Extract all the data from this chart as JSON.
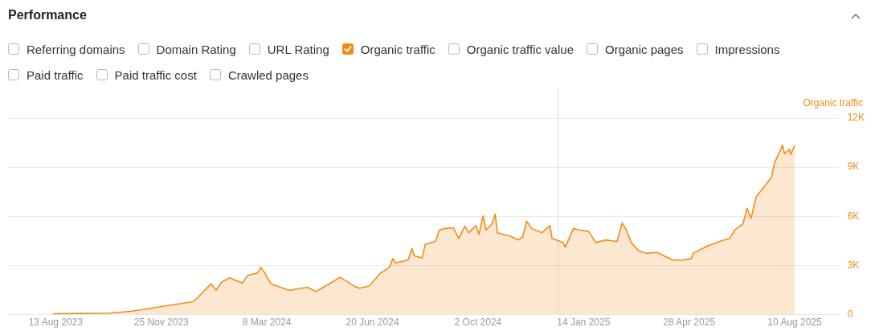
{
  "chart_data": {
    "type": "area",
    "title": "Performance",
    "ylabel": "Organic traffic",
    "annotations": [
      "Referring domains",
      "Domain Rating",
      "URL Rating",
      "Organic traffic value",
      "Organic pages",
      "Impressions",
      "Paid traffic",
      "Paid traffic cost",
      "Crawled pages"
    ],
    "legend": "top left",
    "grid": "y",
    "xlim": [
      "2023-06-27",
      "2025-09-23"
    ],
    "xticks": [
      {
        "value": "2023-08-13",
        "label": "13 Aug 2023"
      },
      {
        "value": "2023-11-25",
        "label": "25 Nov 2023"
      },
      {
        "value": "2024-03-08",
        "label": "8 Mar 2024"
      },
      {
        "value": "2024-06-20",
        "label": "20 Jun 2024"
      },
      {
        "value": "2024-10-02",
        "label": "2 Oct 2024"
      },
      {
        "value": "2025-01-14",
        "label": "14 Jan 2025"
      },
      {
        "value": "2025-04-28",
        "label": "28 Apr 2025"
      },
      {
        "value": "2025-08-10",
        "label": "10 Aug 2025"
      }
    ],
    "ylim": [
      0,
      12000
    ],
    "yticks": [
      {
        "value": 0,
        "label": "0"
      },
      {
        "value": 3000,
        "label": "3K"
      },
      {
        "value": 6000,
        "label": "6K"
      },
      {
        "value": 9000,
        "label": "9K"
      },
      {
        "value": 12000,
        "label": "12K"
      }
    ],
    "ref_lines": [
      {
        "axis": "x",
        "value": "2024-12-20",
        "color": "#e3e3e3"
      }
    ],
    "series": [
      {
        "name": "Organic traffic",
        "color": "#f28c18",
        "x": [
          "2023-08-10",
          "2023-10-05",
          "2023-10-26",
          "2023-12-26",
          "2023-12-31",
          "2024-01-13",
          "2024-01-18",
          "2024-01-23",
          "2024-01-31",
          "2024-02-13",
          "2024-02-18",
          "2024-02-28",
          "2024-03-02",
          "2024-03-06",
          "2024-03-12",
          "2024-03-28",
          "2024-03-31",
          "2024-04-17",
          "2024-04-25",
          "2024-05-10",
          "2024-05-19",
          "2024-06-02",
          "2024-06-07",
          "2024-06-17",
          "2024-06-28",
          "2024-07-07",
          "2024-07-10",
          "2024-07-13",
          "2024-07-25",
          "2024-07-29",
          "2024-07-31",
          "2024-08-08",
          "2024-08-11",
          "2024-08-21",
          "2024-08-25",
          "2024-08-31",
          "2024-09-08",
          "2024-09-13",
          "2024-09-19",
          "2024-09-23",
          "2024-09-30",
          "2024-10-03",
          "2024-10-07",
          "2024-10-10",
          "2024-10-16",
          "2024-10-19",
          "2024-10-21",
          "2024-11-03",
          "2024-11-11",
          "2024-11-15",
          "2024-11-19",
          "2024-11-24",
          "2024-12-04",
          "2024-12-12",
          "2024-12-14",
          "2024-12-25",
          "2024-12-27",
          "2025-01-04",
          "2025-01-09",
          "2025-01-19",
          "2025-01-26",
          "2025-02-04",
          "2025-02-16",
          "2025-02-21",
          "2025-02-25",
          "2025-03-02",
          "2025-03-09",
          "2025-03-17",
          "2025-03-27",
          "2025-04-12",
          "2025-04-21",
          "2025-04-30",
          "2025-05-02",
          "2025-05-15",
          "2025-05-28",
          "2025-06-07",
          "2025-06-12",
          "2025-06-20",
          "2025-06-24",
          "2025-06-28",
          "2025-07-03",
          "2025-07-12",
          "2025-07-18",
          "2025-07-21",
          "2025-07-26",
          "2025-07-29",
          "2025-07-31",
          "2025-08-05",
          "2025-08-06",
          "2025-08-10"
        ],
        "values": [
          50,
          90,
          200,
          790,
          1050,
          1880,
          1490,
          1960,
          2250,
          1930,
          2400,
          2540,
          2890,
          2540,
          1880,
          1530,
          1490,
          1670,
          1400,
          1930,
          2280,
          1750,
          1610,
          1750,
          2540,
          2890,
          3420,
          3160,
          3330,
          4040,
          3600,
          3460,
          4300,
          4470,
          5170,
          5260,
          5300,
          4650,
          5400,
          5000,
          5440,
          4910,
          6020,
          5170,
          5560,
          6140,
          5000,
          4790,
          4560,
          4740,
          5700,
          5260,
          5000,
          5440,
          4650,
          4390,
          4120,
          5260,
          5170,
          5090,
          4390,
          4560,
          4470,
          5610,
          5170,
          4390,
          3910,
          3740,
          3810,
          3330,
          3330,
          3420,
          3740,
          4160,
          4470,
          4650,
          5170,
          5530,
          6490,
          5880,
          7190,
          7890,
          8370,
          9250,
          9910,
          10350,
          9820,
          10090,
          9770,
          10350
        ]
      }
    ]
  }
}
